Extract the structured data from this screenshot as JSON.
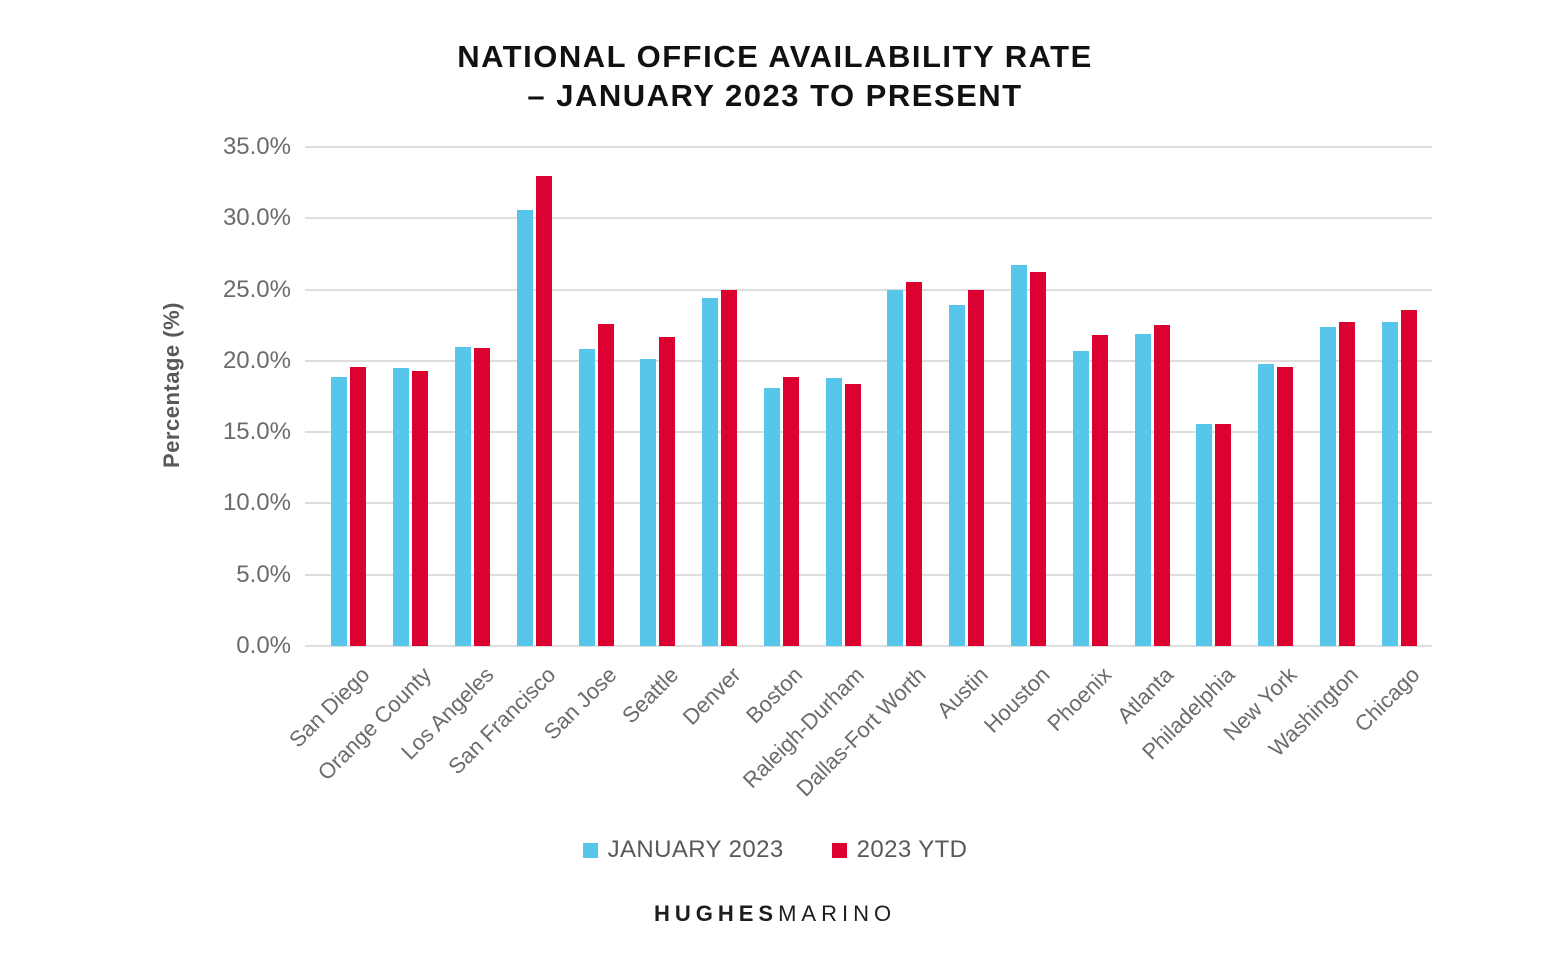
{
  "title": {
    "line1": "NATIONAL OFFICE AVAILABILITY RATE",
    "line2": "– JANUARY 2023 TO PRESENT"
  },
  "chart_data": {
    "type": "bar",
    "title": "NATIONAL OFFICE AVAILABILITY RATE – JANUARY 2023 TO PRESENT",
    "xlabel": "",
    "ylabel": "Percentage (%)",
    "ylim": [
      0,
      35
    ],
    "grid": true,
    "legend_position": "bottom",
    "ytick_values": [
      0,
      5,
      10,
      15,
      20,
      25,
      30,
      35
    ],
    "ytick_labels": [
      "0.0%",
      "5.0%",
      "10.0%",
      "15.0%",
      "20.0%",
      "25.0%",
      "30.0%",
      "35.0%"
    ],
    "categories": [
      "San Diego",
      "Orange County",
      "Los Angeles",
      "San Francisco",
      "San Jose",
      "Seattle",
      "Denver",
      "Boston",
      "Raleigh-Durham",
      "Dallas-Fort Worth",
      "Austin",
      "Houston",
      "Phoenix",
      "Atlanta",
      "Philadelphia",
      "New York",
      "Washington",
      "Chicago"
    ],
    "series": [
      {
        "name": "JANUARY 2023",
        "color": "#56C7EA",
        "values": [
          18.9,
          19.5,
          21.0,
          30.6,
          20.8,
          20.1,
          24.4,
          18.1,
          18.8,
          25.0,
          23.9,
          26.7,
          20.7,
          21.9,
          15.6,
          19.8,
          22.4,
          22.7
        ]
      },
      {
        "name": "2023 YTD",
        "color": "#DB0232",
        "values": [
          19.6,
          19.3,
          20.9,
          33.0,
          22.6,
          21.7,
          25.0,
          18.9,
          18.4,
          25.5,
          25.0,
          26.2,
          21.8,
          22.5,
          15.6,
          19.6,
          22.7,
          23.6
        ]
      }
    ]
  },
  "footer": {
    "brand_bold": "HUGHES",
    "brand_light": "MARINO"
  },
  "colors": {
    "background": "#FFFFFF",
    "series_january": "#56C7EA",
    "series_ytd": "#DB0232",
    "gridline": "#DEDEDE",
    "tick_text": "#6A6B6E",
    "axis_title_text": "#59595B",
    "legend_text": "#58595B",
    "title_text": "#111111",
    "footer_text": "#1D1D1F"
  }
}
